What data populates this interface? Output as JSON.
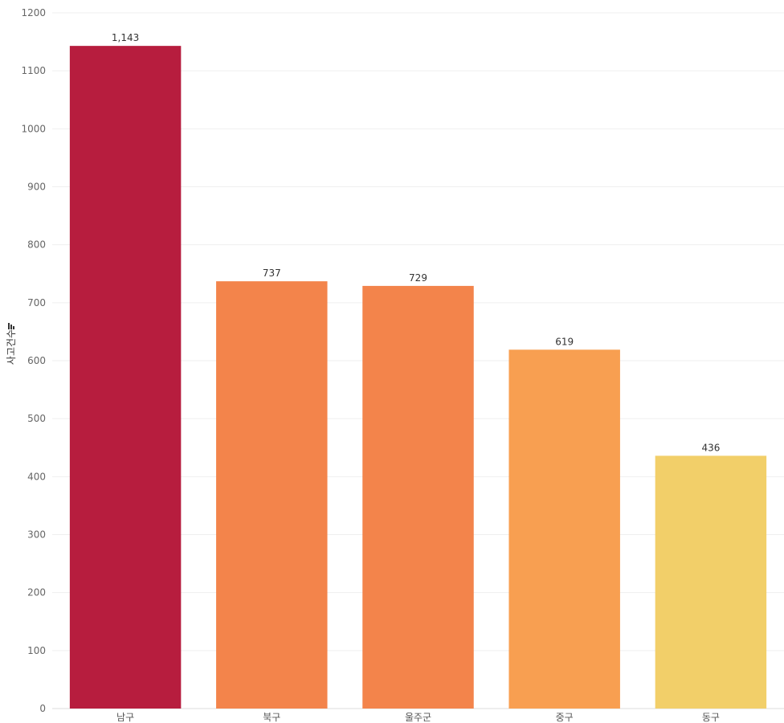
{
  "chart_data": {
    "type": "bar",
    "ylabel": "사고건수",
    "ylim": [
      0,
      1200
    ],
    "yticks": [
      0,
      100,
      200,
      300,
      400,
      500,
      600,
      700,
      800,
      900,
      1000,
      1100,
      1200
    ],
    "categories": [
      "남구",
      "북구",
      "울주군",
      "중구",
      "동구"
    ],
    "values": [
      1143,
      737,
      729,
      619,
      436
    ],
    "data_labels": [
      "1,143",
      "737",
      "729",
      "619",
      "436"
    ],
    "colors": [
      "#b71d3e",
      "#f3844b",
      "#f3844b",
      "#f89f51",
      "#f2cf69"
    ],
    "grid": true,
    "sort_icon": "sort-descending-icon"
  }
}
